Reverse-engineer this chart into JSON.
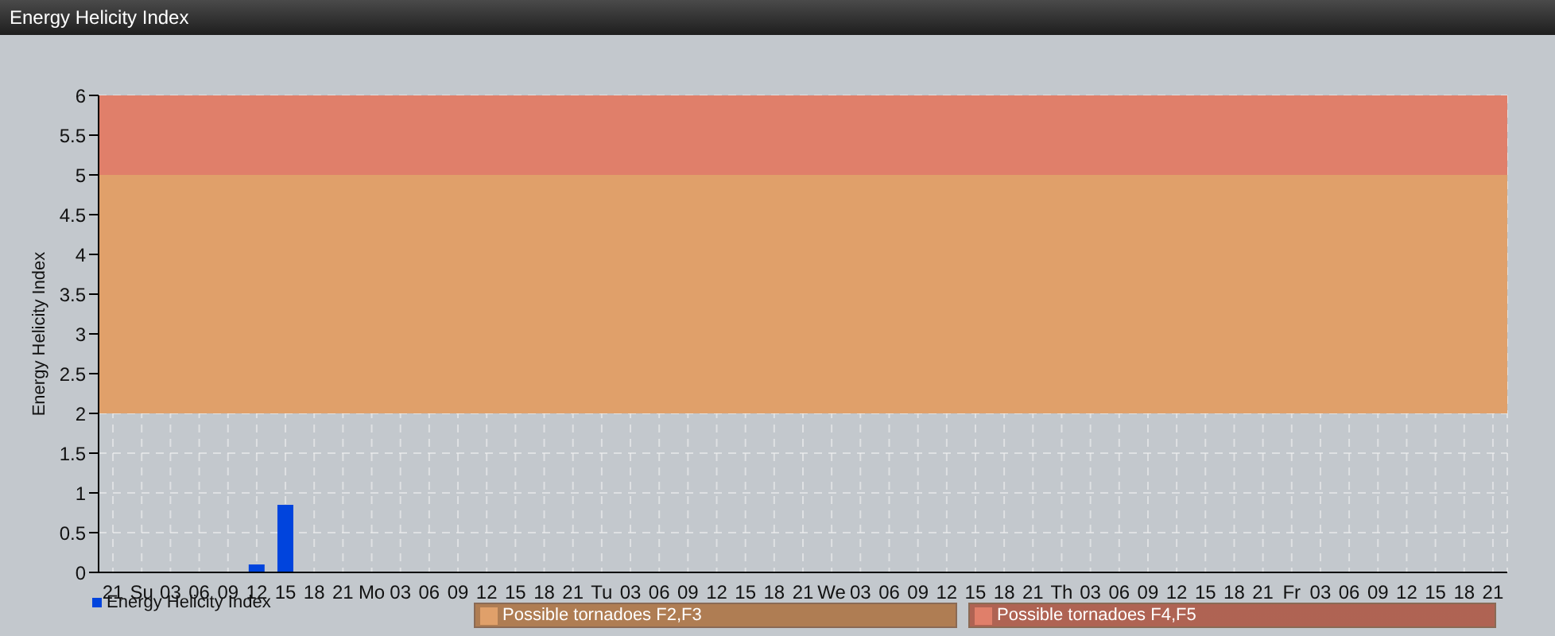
{
  "chart_data": {
    "type": "bar",
    "title": "Energy Helicity Index",
    "ylabel": "Energy Helicity Index",
    "categories": [
      "21",
      "Su",
      "03",
      "06",
      "09",
      "12",
      "15",
      "18",
      "21",
      "Mo",
      "03",
      "06",
      "09",
      "12",
      "15",
      "18",
      "21",
      "Tu",
      "03",
      "06",
      "09",
      "12",
      "15",
      "18",
      "21",
      "We",
      "03",
      "06",
      "09",
      "12",
      "15",
      "18",
      "21",
      "Th",
      "03",
      "06",
      "09",
      "12",
      "15",
      "18",
      "21",
      "Fr",
      "03",
      "06",
      "09",
      "12",
      "15",
      "18",
      "21"
    ],
    "series": [
      {
        "name": "Energy Helicity Index",
        "color": "#0044dd",
        "values": [
          0,
          0,
          0,
          0,
          0,
          0.1,
          0.85,
          0,
          0,
          0,
          0,
          0,
          0,
          0,
          0,
          0,
          0,
          0,
          0,
          0,
          0,
          0,
          0,
          0,
          0,
          0,
          0,
          0,
          0,
          0,
          0,
          0,
          0,
          0,
          0,
          0,
          0,
          0,
          0,
          0,
          0,
          0,
          0,
          0,
          0,
          0,
          0,
          0,
          0
        ]
      }
    ],
    "ylim": [
      0,
      6
    ],
    "yticks": [
      0,
      0.5,
      1,
      1.5,
      2,
      2.5,
      3,
      3.5,
      4,
      4.5,
      5,
      5.5,
      6
    ],
    "bands": [
      {
        "axis": "y",
        "from": 2,
        "to": 5,
        "label": "Possible tornadoes F2,F3",
        "color": "#e0a06a"
      },
      {
        "axis": "y",
        "from": 5,
        "to": 6,
        "label": "Possible tornadoes F4,F5",
        "color": "#e07f6a"
      }
    ],
    "grid": true,
    "legend": "bottom left"
  }
}
